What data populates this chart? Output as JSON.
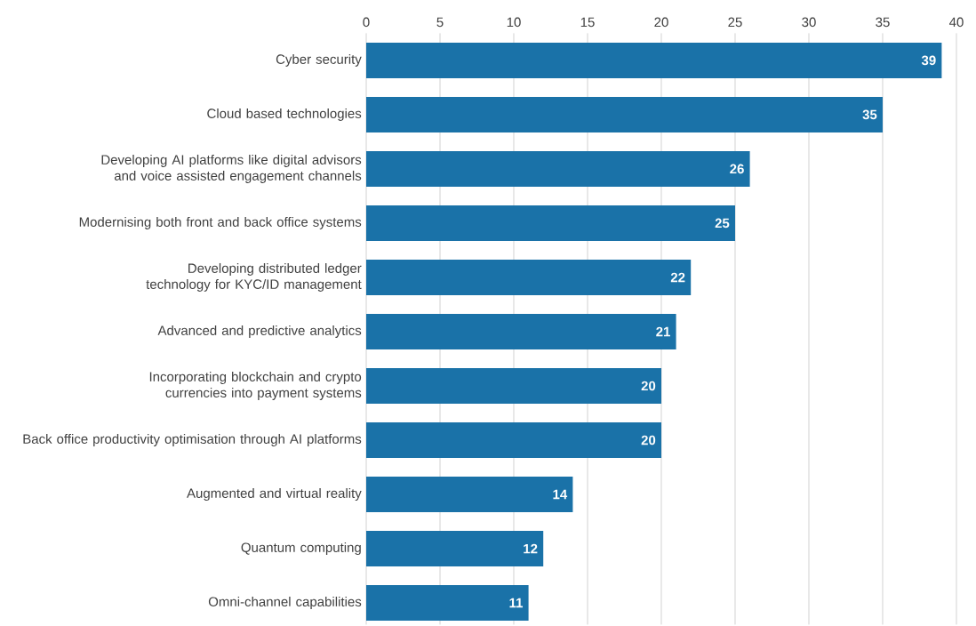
{
  "chart_data": {
    "type": "bar",
    "orientation": "horizontal",
    "categories": [
      "Cyber security",
      "Cloud based technologies",
      "Developing AI platforms like digital advisors and voice assisted engagement channels",
      "Modernising both front and back office systems",
      "Developing distributed ledger technology for KYC/ID management",
      "Advanced and predictive analytics",
      "Incorporating blockchain and crypto currencies into payment systems",
      "Back office productivity optimisation through AI platforms",
      "Augmented and virtual reality",
      "Quantum computing",
      "Omni-channel capabilities"
    ],
    "values": [
      39,
      35,
      26,
      25,
      22,
      21,
      20,
      20,
      14,
      12,
      11
    ],
    "color": "#1a72a8",
    "xlim": [
      0,
      40
    ],
    "xticks": [
      0,
      5,
      10,
      15,
      20,
      25,
      30,
      35,
      40
    ],
    "grid": "x",
    "data_labels": true
  }
}
